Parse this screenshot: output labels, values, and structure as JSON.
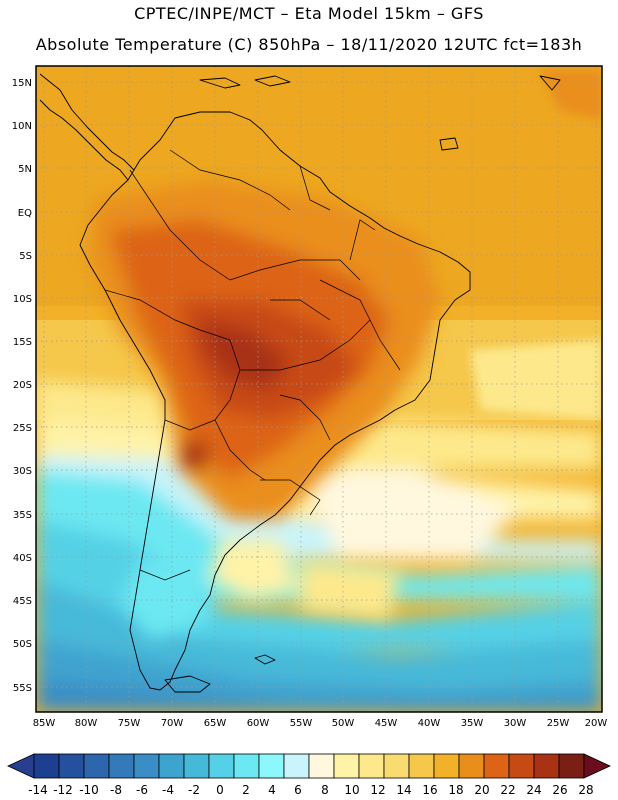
{
  "header": {
    "line1": "CPTEC/INPE/MCT –  Eta Model 15km – GFS",
    "line2": "Absolute Temperature (C) 850hPa – 18/11/2020 12UTC fct=183h"
  },
  "map": {
    "lat_labels": [
      "15N",
      "10N",
      "5N",
      "EQ",
      "5S",
      "10S",
      "15S",
      "20S",
      "25S",
      "30S",
      "35S",
      "40S",
      "45S",
      "50S",
      "55S"
    ],
    "lon_labels": [
      "85W",
      "80W",
      "75W",
      "70W",
      "65W",
      "60W",
      "55W",
      "50W",
      "45W",
      "40W",
      "35W",
      "30W",
      "25W",
      "20W"
    ]
  },
  "colorbar": {
    "tick_labels": [
      "-14",
      "-12",
      "-10",
      "-8",
      "-6",
      "-4",
      "-2",
      "0",
      "2",
      "4",
      "6",
      "8",
      "10",
      "12",
      "14",
      "16",
      "18",
      "20",
      "22",
      "24",
      "26",
      "28"
    ],
    "colors": [
      "#1d3f8f",
      "#25509d",
      "#2d66ac",
      "#3479b9",
      "#3b8dc5",
      "#3fa3cf",
      "#46b9d9",
      "#54d1e6",
      "#6ce8f2",
      "#8cf8fb",
      "#c9f4fb",
      "#fff8df",
      "#fff3a8",
      "#fde98c",
      "#f9dc6f",
      "#f5c74a",
      "#f2b128",
      "#ea8e1b",
      "#dd6416",
      "#c74a14",
      "#a83213",
      "#7a1f14"
    ],
    "under_color": "#283e8e",
    "over_color": "#6a0d1c"
  }
}
